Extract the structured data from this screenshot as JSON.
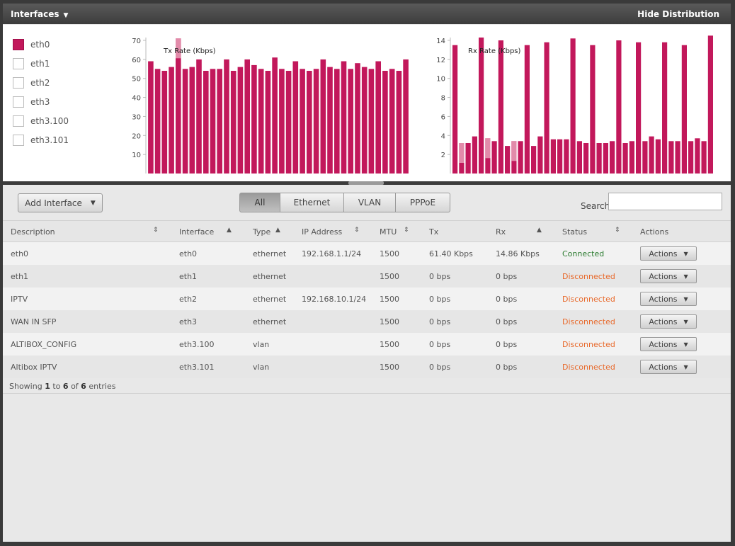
{
  "header": {
    "title": "Interfaces",
    "hide_label": "Hide Distribution"
  },
  "legend": [
    {
      "label": "eth0",
      "checked": true
    },
    {
      "label": "eth1",
      "checked": false
    },
    {
      "label": "eth2",
      "checked": false
    },
    {
      "label": "eth3",
      "checked": false
    },
    {
      "label": "eth3.100",
      "checked": false
    },
    {
      "label": "eth3.101",
      "checked": false
    }
  ],
  "colors": {
    "bar": "#c2185b",
    "bar_highlight": "#e8a0b8",
    "connected": "#2e7d32",
    "disconnected": "#e8692b"
  },
  "chart_data": [
    {
      "type": "bar",
      "title": "Tx Rate (Kbps)",
      "ylim": [
        0,
        70
      ],
      "yticks": [
        "10",
        "20",
        "30",
        "40",
        "50",
        "60",
        "70"
      ],
      "highlight_index": 4,
      "values": [
        59,
        55,
        54,
        56,
        71,
        55,
        56,
        60,
        54,
        55,
        55,
        60,
        54,
        56,
        60,
        57,
        55,
        54,
        61,
        55,
        54,
        59,
        55,
        54,
        55,
        60,
        56,
        55,
        59,
        55,
        58,
        56,
        55,
        59,
        54,
        55,
        54,
        60
      ]
    },
    {
      "type": "bar",
      "title": "Rx Rate (Kbps)",
      "ylim": [
        0,
        14
      ],
      "yticks": [
        "2",
        "4",
        "6",
        "8",
        "10",
        "12",
        "14"
      ],
      "highlight_indices": [
        1,
        5,
        9
      ],
      "values": [
        13.5,
        3.2,
        3.2,
        3.9,
        14.3,
        3.7,
        3.4,
        14.0,
        2.9,
        3.4,
        3.4,
        13.5,
        2.9,
        3.9,
        13.8,
        3.6,
        3.6,
        3.6,
        14.2,
        3.4,
        3.2,
        13.5,
        3.2,
        3.2,
        3.4,
        14.0,
        3.2,
        3.4,
        13.8,
        3.4,
        3.9,
        3.6,
        13.8,
        3.4,
        3.4,
        13.5,
        3.4,
        3.7,
        3.4,
        14.5
      ]
    }
  ],
  "toolbar": {
    "add_label": "Add Interface",
    "filters": [
      "All",
      "Ethernet",
      "VLAN",
      "PPPoE"
    ],
    "active_filter": "All",
    "search_label": "Search",
    "search_value": ""
  },
  "table": {
    "headers": [
      "Description",
      "Interface",
      "Type",
      "IP Address",
      "MTU",
      "Tx",
      "Rx",
      "Status",
      "Actions"
    ],
    "action_label": "Actions",
    "rows": [
      {
        "description": "eth0",
        "interface": "eth0",
        "type": "ethernet",
        "ip": "192.168.1.1/24",
        "mtu": "1500",
        "tx": "61.40 Kbps",
        "rx": "14.86 Kbps",
        "status": "Connected"
      },
      {
        "description": "eth1",
        "interface": "eth1",
        "type": "ethernet",
        "ip": "",
        "mtu": "1500",
        "tx": "0 bps",
        "rx": "0 bps",
        "status": "Disconnected"
      },
      {
        "description": "IPTV",
        "interface": "eth2",
        "type": "ethernet",
        "ip": "192.168.10.1/24",
        "mtu": "1500",
        "tx": "0 bps",
        "rx": "0 bps",
        "status": "Disconnected"
      },
      {
        "description": "WAN IN SFP",
        "interface": "eth3",
        "type": "ethernet",
        "ip": "",
        "mtu": "1500",
        "tx": "0 bps",
        "rx": "0 bps",
        "status": "Disconnected"
      },
      {
        "description": "ALTIBOX_CONFIG",
        "interface": "eth3.100",
        "type": "vlan",
        "ip": "",
        "mtu": "1500",
        "tx": "0 bps",
        "rx": "0 bps",
        "status": "Disconnected"
      },
      {
        "description": "Altibox IPTV",
        "interface": "eth3.101",
        "type": "vlan",
        "ip": "",
        "mtu": "1500",
        "tx": "0 bps",
        "rx": "0 bps",
        "status": "Disconnected"
      }
    ],
    "info": {
      "prefix": "Showing",
      "from": "1",
      "to_word": "to",
      "to": "6",
      "of_word": "of",
      "total": "6",
      "suffix": "entries"
    }
  }
}
